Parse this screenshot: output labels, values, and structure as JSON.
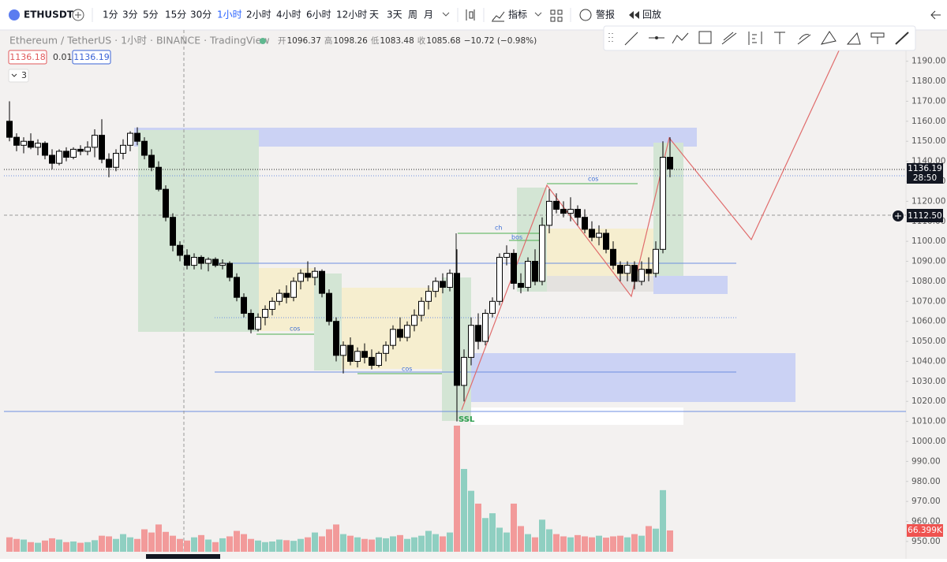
{
  "toolbar": {
    "symbol": "ETHUSDT",
    "intervals": [
      "1分",
      "3分",
      "5分",
      "15分",
      "30分",
      "1小时",
      "2小时",
      "4小时",
      "6小时",
      "12小时",
      "天",
      "3天",
      "周",
      "月"
    ],
    "active_interval": "1小时",
    "indicators": "指标",
    "alert": "警报",
    "replay": "回放"
  },
  "chart_data": {
    "type": "candlestick",
    "title": "Ethereum / TetherUS · 1小时 · BINANCE · TradingView",
    "legend": [
      "开",
      "1096.37",
      "高",
      "1098.26",
      "低",
      "1083.48",
      "收",
      "1085.68",
      "−10.72 (−0.98%)"
    ],
    "price_labels": {
      "bid": "1136.18",
      "spread": "0.01",
      "ask": "1136.19",
      "indicator_count": "3",
      "last": "1136.19",
      "countdown": "28:50",
      "crosshair": "1112.50",
      "volume": "66.399K"
    },
    "annotations": [
      "cos",
      "cos",
      "ch",
      "bos",
      "cos",
      "SSL"
    ],
    "up_color": "#ffffff",
    "down_color": "#000000",
    "volume_up_color": "#8fcfc1",
    "volume_down_color": "#f29a9a",
    "ylim": [
      948,
      1208
    ],
    "yticks": [
      {
        "value": 950,
        "label": "950.00"
      },
      {
        "value": 960,
        "label": "960.00"
      },
      {
        "value": 970,
        "label": "970.00"
      },
      {
        "value": 980,
        "label": "980.00"
      },
      {
        "value": 990,
        "label": "990.00"
      },
      {
        "value": 1000,
        "label": "1000.00"
      },
      {
        "value": 1010,
        "label": "1010.00"
      },
      {
        "value": 1020,
        "label": "1020.00"
      },
      {
        "value": 1030,
        "label": "1030.00"
      },
      {
        "value": 1040,
        "label": "1040.00"
      },
      {
        "value": 1050,
        "label": "1050.00"
      },
      {
        "value": 1060,
        "label": "1060.00"
      },
      {
        "value": 1070,
        "label": "1070.00"
      },
      {
        "value": 1080,
        "label": "1080.00"
      },
      {
        "value": 1090,
        "label": "1090.00"
      },
      {
        "value": 1100,
        "label": "1100.00"
      },
      {
        "value": 1110,
        "label": "1110.00"
      },
      {
        "value": 1120,
        "label": "1120.00"
      },
      {
        "value": 1130,
        "label": "1130.00"
      },
      {
        "value": 1140,
        "label": "1140.00"
      },
      {
        "value": 1150,
        "label": "1150.00"
      },
      {
        "value": 1160,
        "label": "1160.00"
      },
      {
        "value": 1170,
        "label": "1170.00"
      },
      {
        "value": 1180,
        "label": "1180.00"
      },
      {
        "value": 1190,
        "label": "1190.00"
      }
    ],
    "grid": false,
    "open": [
      1160,
      1152,
      1148,
      1150,
      1147,
      1149,
      1143,
      1139,
      1145,
      1142,
      1146,
      1145,
      1147,
      1153,
      1141,
      1137,
      1144,
      1148,
      1154,
      1150,
      1143,
      1137,
      1126,
      1112,
      1098,
      1093,
      1088,
      1092,
      1089,
      1091,
      1088,
      1089,
      1082,
      1072,
      1064,
      1056,
      1062,
      1066,
      1070,
      1074,
      1072,
      1080,
      1084,
      1082,
      1085,
      1074,
      1060,
      1043,
      1048,
      1040,
      1045,
      1042,
      1038,
      1044,
      1048,
      1056,
      1052,
      1058,
      1063,
      1070,
      1075,
      1080,
      1077,
      1084,
      1028,
      1042,
      1058,
      1050,
      1064,
      1070,
      1092,
      1094,
      1079,
      1077,
      1090,
      1080,
      1108,
      1120,
      1116,
      1114,
      1116,
      1112,
      1106,
      1102,
      1104,
      1096,
      1088,
      1084,
      1088,
      1080,
      1086,
      1084,
      1096,
      1142
    ],
    "high": [
      1170,
      1154,
      1152,
      1154,
      1151,
      1150,
      1146,
      1146,
      1147,
      1147,
      1148,
      1150,
      1156,
      1161,
      1144,
      1146,
      1151,
      1155,
      1157,
      1152,
      1146,
      1140,
      1128,
      1114,
      1100,
      1096,
      1094,
      1093,
      1092,
      1092,
      1091,
      1090,
      1084,
      1074,
      1066,
      1064,
      1068,
      1072,
      1076,
      1078,
      1082,
      1086,
      1090,
      1087,
      1086,
      1076,
      1062,
      1050,
      1052,
      1047,
      1049,
      1046,
      1045,
      1050,
      1058,
      1062,
      1060,
      1066,
      1072,
      1078,
      1082,
      1084,
      1086,
      1096,
      1046,
      1062,
      1064,
      1066,
      1072,
      1094,
      1098,
      1096,
      1084,
      1092,
      1096,
      1112,
      1126,
      1124,
      1120,
      1122,
      1118,
      1116,
      1110,
      1108,
      1106,
      1100,
      1090,
      1090,
      1090,
      1090,
      1092,
      1100,
      1150,
      1152
    ],
    "low": [
      1150,
      1145,
      1144,
      1146,
      1143,
      1141,
      1136,
      1138,
      1140,
      1141,
      1143,
      1143,
      1142,
      1139,
      1132,
      1135,
      1141,
      1145,
      1148,
      1141,
      1135,
      1125,
      1110,
      1095,
      1090,
      1086,
      1086,
      1086,
      1085,
      1087,
      1086,
      1080,
      1070,
      1062,
      1054,
      1055,
      1058,
      1063,
      1068,
      1069,
      1070,
      1076,
      1080,
      1078,
      1072,
      1058,
      1040,
      1034,
      1038,
      1037,
      1039,
      1036,
      1037,
      1040,
      1046,
      1050,
      1050,
      1055,
      1060,
      1066,
      1072,
      1074,
      1075,
      1010,
      1020,
      1038,
      1046,
      1048,
      1062,
      1068,
      1088,
      1076,
      1074,
      1075,
      1078,
      1078,
      1104,
      1114,
      1112,
      1110,
      1108,
      1104,
      1100,
      1098,
      1094,
      1086,
      1080,
      1080,
      1076,
      1078,
      1080,
      1082,
      1094,
      1132
    ],
    "close": [
      1152,
      1148,
      1150,
      1147,
      1149,
      1143,
      1139,
      1145,
      1142,
      1146,
      1145,
      1147,
      1153,
      1141,
      1137,
      1144,
      1148,
      1154,
      1150,
      1143,
      1137,
      1126,
      1112,
      1098,
      1093,
      1088,
      1092,
      1089,
      1091,
      1088,
      1089,
      1082,
      1072,
      1064,
      1056,
      1062,
      1066,
      1070,
      1074,
      1072,
      1080,
      1084,
      1082,
      1085,
      1074,
      1060,
      1043,
      1048,
      1040,
      1045,
      1042,
      1038,
      1044,
      1048,
      1056,
      1052,
      1058,
      1063,
      1070,
      1075,
      1080,
      1077,
      1084,
      1028,
      1042,
      1058,
      1050,
      1064,
      1070,
      1092,
      1094,
      1079,
      1077,
      1090,
      1080,
      1108,
      1120,
      1116,
      1114,
      1116,
      1112,
      1106,
      1102,
      1104,
      1096,
      1088,
      1084,
      1088,
      1080,
      1086,
      1084,
      1096,
      1142,
      1136.19
    ],
    "volume": [
      45,
      40,
      38,
      30,
      28,
      35,
      42,
      38,
      30,
      32,
      28,
      30,
      36,
      50,
      48,
      40,
      55,
      45,
      40,
      70,
      60,
      85,
      62,
      50,
      40,
      35,
      45,
      52,
      38,
      30,
      42,
      48,
      65,
      55,
      40,
      35,
      30,
      32,
      38,
      36,
      34,
      40,
      45,
      60,
      48,
      70,
      85,
      55,
      50,
      45,
      40,
      38,
      45,
      42,
      48,
      52,
      40,
      45,
      50,
      65,
      55,
      48,
      60,
      393,
      258,
      190,
      150,
      105,
      120,
      75,
      60,
      150,
      80,
      55,
      45,
      100,
      70,
      55,
      48,
      45,
      52,
      48,
      45,
      50,
      44,
      48,
      50,
      45,
      55,
      50,
      80,
      72,
      192,
      66.399
    ]
  }
}
